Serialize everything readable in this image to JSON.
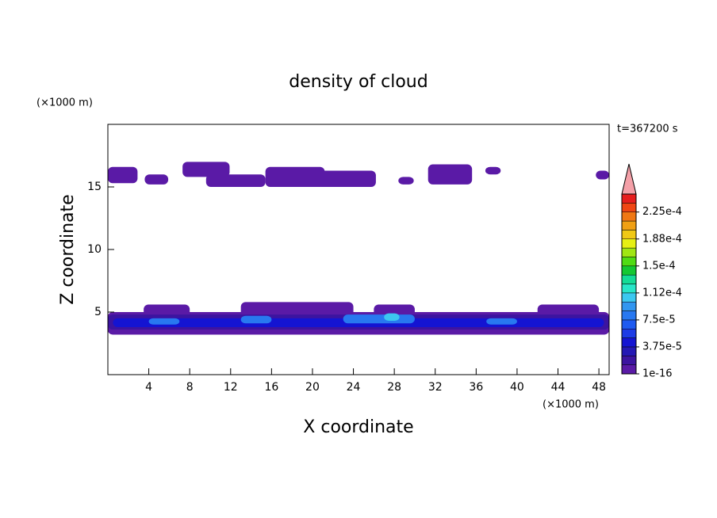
{
  "chart_data": {
    "type": "contour",
    "title": "density of cloud",
    "x_label": "X coordinate",
    "y_label": "Z coordinate",
    "x_unit": "(×1000 m)",
    "y_unit": "(×1000 m)",
    "time_label": "t=367200 s",
    "xlim": [
      0,
      49
    ],
    "ylim": [
      0,
      20
    ],
    "xticks": [
      4,
      8,
      12,
      16,
      20,
      24,
      28,
      32,
      36,
      40,
      44,
      48
    ],
    "yticks": [
      5,
      10,
      15
    ],
    "clim": [
      1e-16,
      0.00025
    ],
    "cticks": [
      {
        "value": 1e-16,
        "label": "1e-16"
      },
      {
        "value": 3.75e-05,
        "label": "3.75e-5"
      },
      {
        "value": 7.5e-05,
        "label": "7.5e-5"
      },
      {
        "value": 0.0001125,
        "label": "1.12e-4"
      },
      {
        "value": 0.00015,
        "label": "1.5e-4"
      },
      {
        "value": 0.0001875,
        "label": "1.88e-4"
      },
      {
        "value": 0.000225,
        "label": "2.25e-4"
      }
    ],
    "colors": [
      "#5a1aa6",
      "#3c14a0",
      "#2418b4",
      "#1414d2",
      "#1e3ce6",
      "#1e5af0",
      "#2878f0",
      "#3296f0",
      "#3cc8f0",
      "#28e6c8",
      "#14dc96",
      "#14c832",
      "#50dc14",
      "#a0e614",
      "#e6f014",
      "#f0c814",
      "#f0a014",
      "#f07814",
      "#f04614",
      "#e61e1e"
    ],
    "over_color": "#f4a0a8",
    "regions": [
      {
        "x": [
          0,
          2.9
        ],
        "z": [
          15.3,
          16.6
        ],
        "value": 1e-16
      },
      {
        "x": [
          3.6,
          5.9
        ],
        "z": [
          15.2,
          16.0
        ],
        "value": 1e-16
      },
      {
        "x": [
          7.3,
          11.9
        ],
        "z": [
          15.8,
          17.0
        ],
        "value": 1e-16
      },
      {
        "x": [
          9.6,
          15.4
        ],
        "z": [
          15.0,
          16.0
        ],
        "value": 1e-16
      },
      {
        "x": [
          15.4,
          21.2
        ],
        "z": [
          15.0,
          16.6
        ],
        "value": 1e-16
      },
      {
        "x": [
          20.4,
          26.2
        ],
        "z": [
          15.0,
          16.3
        ],
        "value": 1e-16
      },
      {
        "x": [
          28.4,
          29.9
        ],
        "z": [
          15.2,
          15.8
        ],
        "value": 1e-16
      },
      {
        "x": [
          31.3,
          35.6
        ],
        "z": [
          15.2,
          16.8
        ],
        "value": 1e-16
      },
      {
        "x": [
          36.9,
          38.4
        ],
        "z": [
          16.0,
          16.6
        ],
        "value": 1e-16
      },
      {
        "x": [
          47.7,
          49
        ],
        "z": [
          15.6,
          16.3
        ],
        "value": 1e-16
      },
      {
        "x": [
          0,
          49
        ],
        "z": [
          3.2,
          5.0
        ],
        "value": 1e-16
      },
      {
        "x": [
          3.5,
          8
        ],
        "z": [
          4.5,
          5.6
        ],
        "value": 1e-16
      },
      {
        "x": [
          13,
          24
        ],
        "z": [
          4.5,
          5.8
        ],
        "value": 1e-16
      },
      {
        "x": [
          26,
          30
        ],
        "z": [
          4.5,
          5.6
        ],
        "value": 1e-16
      },
      {
        "x": [
          42,
          48
        ],
        "z": [
          4.5,
          5.6
        ],
        "value": 1e-16
      },
      {
        "x": [
          0,
          49
        ],
        "z": [
          3.6,
          4.8
        ],
        "value": 2e-05
      },
      {
        "x": [
          0.5,
          48.5
        ],
        "z": [
          3.8,
          4.5
        ],
        "value": 5e-05
      },
      {
        "x": [
          4,
          7
        ],
        "z": [
          4.0,
          4.5
        ],
        "value": 8e-05
      },
      {
        "x": [
          13,
          16
        ],
        "z": [
          4.1,
          4.7
        ],
        "value": 8e-05
      },
      {
        "x": [
          23,
          30
        ],
        "z": [
          4.1,
          4.8
        ],
        "value": 8e-05
      },
      {
        "x": [
          27,
          28.5
        ],
        "z": [
          4.3,
          4.9
        ],
        "value": 0.00011
      },
      {
        "x": [
          37,
          40
        ],
        "z": [
          4.0,
          4.5
        ],
        "value": 8e-05
      }
    ]
  }
}
